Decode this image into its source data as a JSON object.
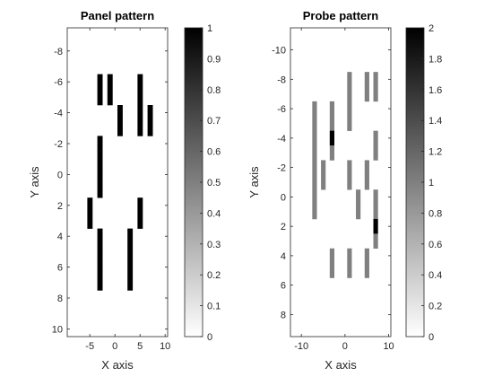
{
  "chart_data": [
    {
      "type": "heatmap",
      "title": "Panel pattern",
      "xlabel": "X axis",
      "ylabel": "Y axis",
      "xlim": [
        -9.5,
        10.5
      ],
      "ylim": [
        -9.5,
        10.5
      ],
      "y_reversed": true,
      "xticks": [
        -5,
        0,
        5,
        10
      ],
      "yticks": [
        -8,
        -6,
        -4,
        -2,
        0,
        2,
        4,
        6,
        8,
        10
      ],
      "cells": [
        {
          "x": -3,
          "y": -6,
          "v": 1
        },
        {
          "x": -3,
          "y": -5,
          "v": 1
        },
        {
          "x": -1,
          "y": -6,
          "v": 1
        },
        {
          "x": -1,
          "y": -5,
          "v": 1
        },
        {
          "x": 5,
          "y": -6,
          "v": 1
        },
        {
          "x": 5,
          "y": -5,
          "v": 1
        },
        {
          "x": 1,
          "y": -4,
          "v": 1
        },
        {
          "x": 1,
          "y": -3,
          "v": 1
        },
        {
          "x": 5,
          "y": -4,
          "v": 1
        },
        {
          "x": 5,
          "y": -3,
          "v": 1
        },
        {
          "x": 7,
          "y": -4,
          "v": 1
        },
        {
          "x": 7,
          "y": -3,
          "v": 1
        },
        {
          "x": -3,
          "y": -2,
          "v": 1
        },
        {
          "x": -3,
          "y": -1,
          "v": 1
        },
        {
          "x": -3,
          "y": 0,
          "v": 1
        },
        {
          "x": -3,
          "y": 1,
          "v": 1
        },
        {
          "x": -5,
          "y": 2,
          "v": 1
        },
        {
          "x": -5,
          "y": 3,
          "v": 1
        },
        {
          "x": 5,
          "y": 2,
          "v": 1
        },
        {
          "x": 5,
          "y": 3,
          "v": 1
        },
        {
          "x": -3,
          "y": 4,
          "v": 1
        },
        {
          "x": -3,
          "y": 5,
          "v": 1
        },
        {
          "x": 3,
          "y": 4,
          "v": 1
        },
        {
          "x": 3,
          "y": 5,
          "v": 1
        },
        {
          "x": -3,
          "y": 6,
          "v": 1
        },
        {
          "x": -3,
          "y": 7,
          "v": 1
        },
        {
          "x": 3,
          "y": 6,
          "v": 1
        },
        {
          "x": 3,
          "y": 7,
          "v": 1
        }
      ],
      "colorbar": {
        "min": 0,
        "max": 1,
        "ticks": [
          "0",
          "0.1",
          "0.2",
          "0.3",
          "0.4",
          "0.5",
          "0.6",
          "0.7",
          "0.8",
          "0.9",
          "1"
        ]
      }
    },
    {
      "type": "heatmap",
      "title": "Probe pattern",
      "xlabel": "X axis",
      "ylabel": "Y axis",
      "xlim": [
        -12.5,
        10.5
      ],
      "ylim": [
        -11.5,
        9.5
      ],
      "y_reversed": true,
      "xticks": [
        -10,
        0,
        10
      ],
      "yticks": [
        -10,
        -8,
        -6,
        -4,
        -2,
        0,
        2,
        4,
        6,
        8
      ],
      "cells": [
        {
          "x": -7,
          "y": -6,
          "v": 1
        },
        {
          "x": -7,
          "y": -5,
          "v": 1
        },
        {
          "x": -7,
          "y": -4,
          "v": 1
        },
        {
          "x": -7,
          "y": -3,
          "v": 1
        },
        {
          "x": -7,
          "y": -2,
          "v": 1
        },
        {
          "x": -7,
          "y": -1,
          "v": 1
        },
        {
          "x": -7,
          "y": 0,
          "v": 1
        },
        {
          "x": -7,
          "y": 1,
          "v": 1
        },
        {
          "x": -5,
          "y": -2,
          "v": 1
        },
        {
          "x": -5,
          "y": -1,
          "v": 1
        },
        {
          "x": -3,
          "y": -6,
          "v": 1
        },
        {
          "x": -3,
          "y": -5,
          "v": 1
        },
        {
          "x": -3,
          "y": -4,
          "v": 2
        },
        {
          "x": -3,
          "y": -3,
          "v": 1
        },
        {
          "x": -3,
          "y": 4,
          "v": 1
        },
        {
          "x": -3,
          "y": 5,
          "v": 1
        },
        {
          "x": 1,
          "y": -8,
          "v": 1
        },
        {
          "x": 1,
          "y": -7,
          "v": 1
        },
        {
          "x": 1,
          "y": -6,
          "v": 1
        },
        {
          "x": 1,
          "y": -5,
          "v": 1
        },
        {
          "x": 1,
          "y": -2,
          "v": 1
        },
        {
          "x": 1,
          "y": -1,
          "v": 1
        },
        {
          "x": 1,
          "y": 4,
          "v": 1
        },
        {
          "x": 1,
          "y": 5,
          "v": 1
        },
        {
          "x": 3,
          "y": 0,
          "v": 1
        },
        {
          "x": 3,
          "y": 1,
          "v": 1
        },
        {
          "x": 5,
          "y": -8,
          "v": 1
        },
        {
          "x": 5,
          "y": -7,
          "v": 1
        },
        {
          "x": 5,
          "y": -2,
          "v": 1
        },
        {
          "x": 5,
          "y": -1,
          "v": 1
        },
        {
          "x": 5,
          "y": 4,
          "v": 1
        },
        {
          "x": 5,
          "y": 5,
          "v": 1
        },
        {
          "x": 7,
          "y": -8,
          "v": 1
        },
        {
          "x": 7,
          "y": -7,
          "v": 1
        },
        {
          "x": 7,
          "y": -4,
          "v": 1
        },
        {
          "x": 7,
          "y": -3,
          "v": 1
        },
        {
          "x": 7,
          "y": 0,
          "v": 1
        },
        {
          "x": 7,
          "y": 1,
          "v": 1
        },
        {
          "x": 7,
          "y": 2,
          "v": 2
        },
        {
          "x": 7,
          "y": 3,
          "v": 1
        }
      ],
      "colorbar": {
        "min": 0,
        "max": 2,
        "ticks": [
          "0",
          "0.2",
          "0.4",
          "0.6",
          "0.8",
          "1",
          "1.2",
          "1.4",
          "1.6",
          "1.8",
          "2"
        ]
      }
    }
  ]
}
